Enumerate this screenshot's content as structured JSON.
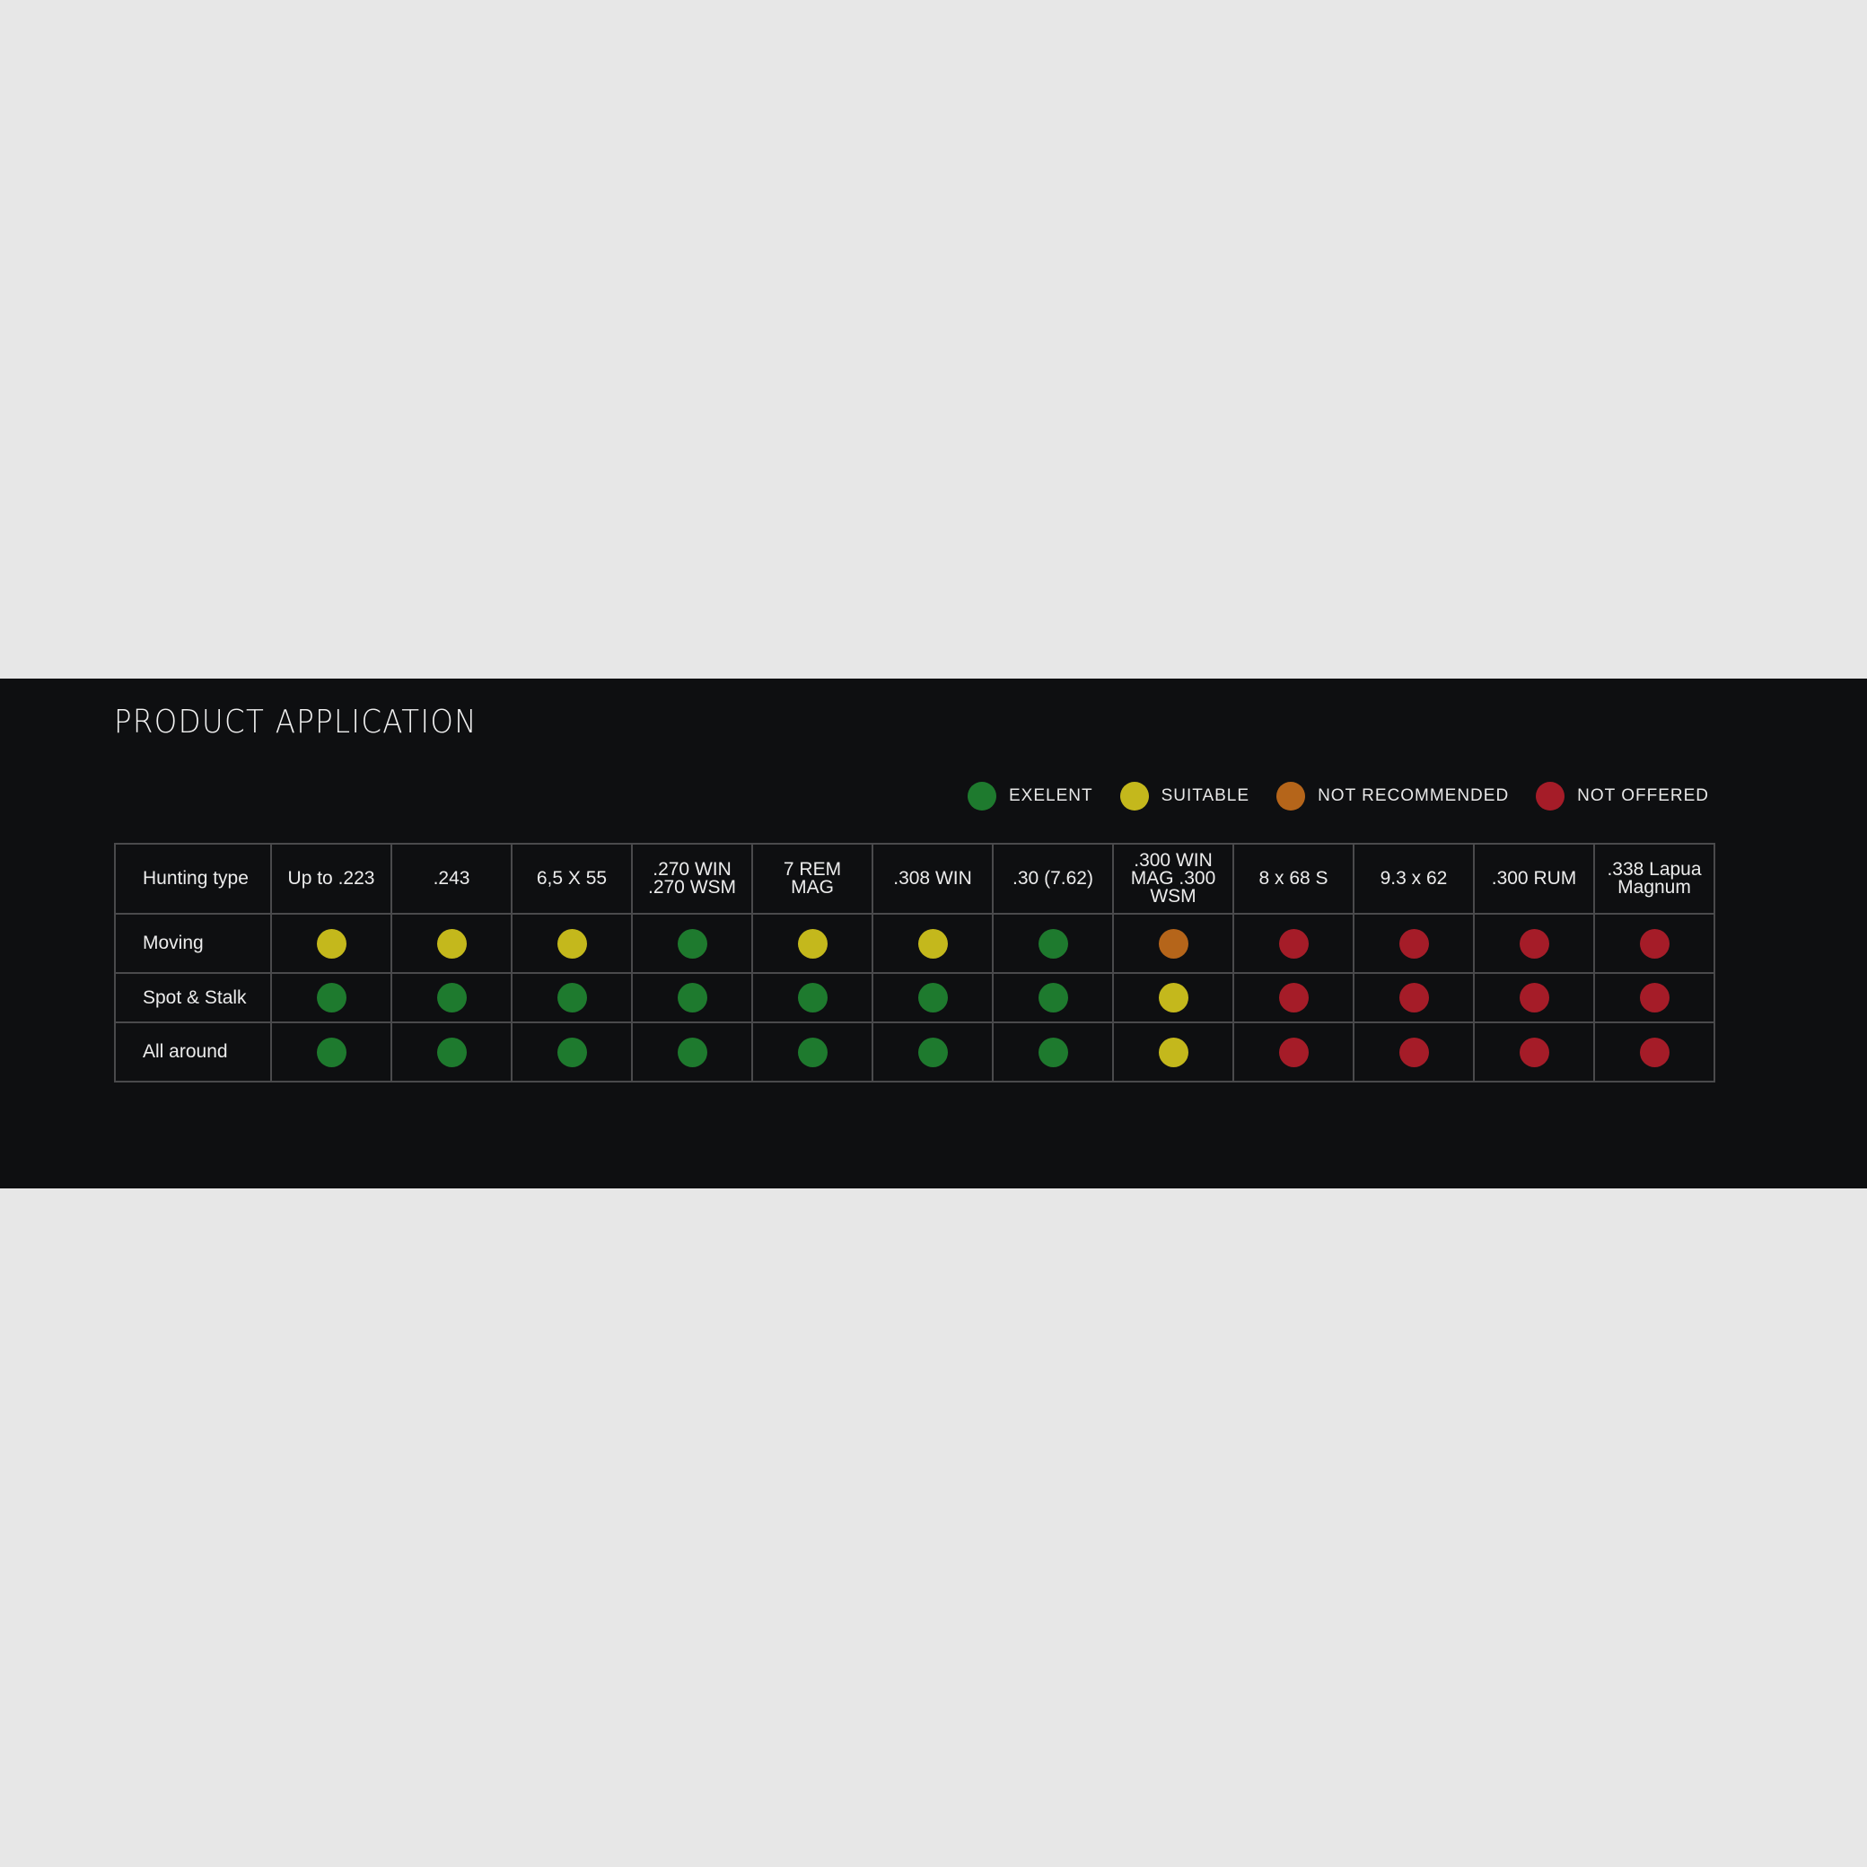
{
  "title": "PRODUCT APPLICATION",
  "legend": [
    {
      "key": "excellent",
      "label": "EXELENT",
      "color": "#1e7a2e"
    },
    {
      "key": "suitable",
      "label": "SUITABLE",
      "color": "#c4b81c"
    },
    {
      "key": "not_recommended",
      "label": "NOT RECOMMENDED",
      "color": "#b5651a"
    },
    {
      "key": "not_offered",
      "label": "NOT OFFERED",
      "color": "#a51c28"
    }
  ],
  "table": {
    "row_header_label": "Hunting type",
    "columns": [
      "Up to .223",
      ".243",
      "6,5 X 55",
      ".270 WIN\n.270 WSM",
      "7 REM\nMAG",
      ".308 WIN",
      ".30 (7.62)",
      ".300 WIN\nMAG .300\nWSM",
      "8 x 68 S",
      "9.3 x 62",
      ".300 RUM",
      ".338 Lapua\nMagnum"
    ],
    "rows": [
      {
        "label": "Moving",
        "ratings": [
          "suitable",
          "suitable",
          "suitable",
          "excellent",
          "suitable",
          "suitable",
          "excellent",
          "not_recommended",
          "not_offered",
          "not_offered",
          "not_offered",
          "not_offered"
        ]
      },
      {
        "label": "Spot & Stalk",
        "ratings": [
          "excellent",
          "excellent",
          "excellent",
          "excellent",
          "excellent",
          "excellent",
          "excellent",
          "suitable",
          "not_offered",
          "not_offered",
          "not_offered",
          "not_offered"
        ]
      },
      {
        "label": "All around",
        "ratings": [
          "excellent",
          "excellent",
          "excellent",
          "excellent",
          "excellent",
          "excellent",
          "excellent",
          "suitable",
          "not_offered",
          "not_offered",
          "not_offered",
          "not_offered"
        ]
      }
    ]
  }
}
